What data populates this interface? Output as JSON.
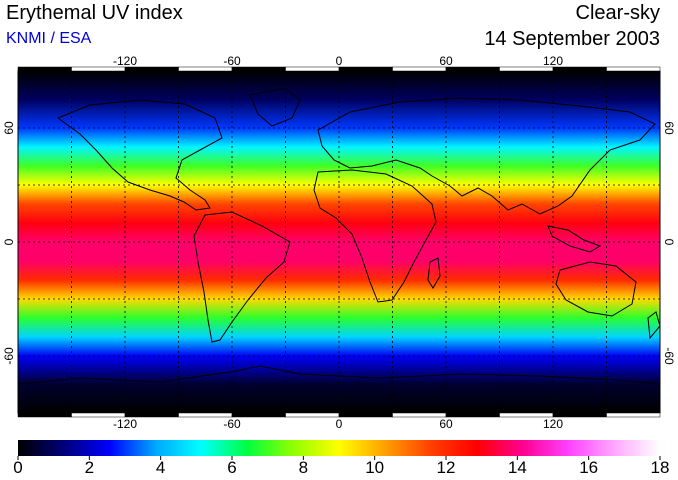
{
  "header": {
    "title": "Erythemal UV index",
    "credit": "KNMI / ESA",
    "sky_condition": "Clear-sky",
    "date": "14 September 2003"
  },
  "map": {
    "projection": "equirectangular",
    "lon_range": [
      -180,
      180
    ],
    "lat_range": [
      -90,
      90
    ],
    "lon_ticks": [
      "-120",
      "-60",
      "0",
      "60",
      "120"
    ],
    "lat_ticks": [
      "60",
      "0",
      "-60"
    ],
    "grid": "dashed 30-degree lines",
    "coastlines": true
  },
  "colorbar": {
    "min": 0,
    "max": 18,
    "labels": [
      "0",
      "2",
      "4",
      "6",
      "8",
      "10",
      "12",
      "14",
      "16",
      "18"
    ],
    "colors": [
      "#000000",
      "#00007a",
      "#0000ff",
      "#00a8ff",
      "#00ffff",
      "#00ff40",
      "#90ff00",
      "#ffff00",
      "#ffa000",
      "#ff4000",
      "#ff0000",
      "#ff0090",
      "#ff40ff",
      "#ffa8ff",
      "#ffffff"
    ]
  },
  "uv_profile": {
    "latitudes": [
      -90,
      -75,
      -60,
      -50,
      -40,
      -30,
      -20,
      -10,
      0,
      10,
      20,
      30,
      40,
      50,
      60,
      75,
      90
    ],
    "values": [
      0,
      0.5,
      2.5,
      4.5,
      6.8,
      9.5,
      12.0,
      13.8,
      13.8,
      13.0,
      11.5,
      9.0,
      7.0,
      5.0,
      3.0,
      1.0,
      0
    ]
  }
}
